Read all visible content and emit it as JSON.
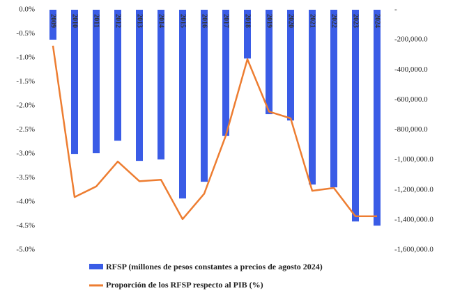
{
  "chart_data": {
    "type": "bar-line",
    "categories": [
      "2009",
      "2010",
      "2011",
      "2012",
      "2013",
      "2014",
      "2015",
      "2016",
      "2017",
      "2018",
      "2019",
      "2020",
      "2021",
      "2022",
      "2023",
      "2024"
    ],
    "series": [
      {
        "name": "RFSP (millones de pesos constantes a precios de agosto 2024)",
        "type": "bar",
        "axis": "y2",
        "color": "#3a5ce6",
        "values": [
          -199500,
          -960600,
          -956000,
          -872400,
          -1007000,
          -997700,
          -1257500,
          -1146000,
          -840000,
          -324800,
          -696000,
          -737800,
          -1164700,
          -1183300,
          -1410700,
          -1438500
        ]
      },
      {
        "name": "Proporción de los RFSP respecto al PIB (%)",
        "type": "line",
        "color": "#ed7d31",
        "values": [
          -0.75,
          -3.9,
          -3.68,
          -3.16,
          -3.57,
          -3.54,
          -4.36,
          -3.83,
          -2.62,
          -1.03,
          -2.12,
          -2.26,
          -3.77,
          -3.71,
          -4.3,
          -4.3
        ]
      }
    ],
    "ylim": [
      -5,
      0
    ],
    "yticks": [
      {
        "value": 0,
        "label": "0.0%"
      },
      {
        "value": -0.5,
        "label": "-0.5%"
      },
      {
        "value": -1,
        "label": "-1.0%"
      },
      {
        "value": -1.5,
        "label": "-1.5%"
      },
      {
        "value": -2,
        "label": "-2.0%"
      },
      {
        "value": -2.5,
        "label": "-2.5%"
      },
      {
        "value": -3,
        "label": "-3.0%"
      },
      {
        "value": -3.5,
        "label": "-3.5%"
      },
      {
        "value": -4,
        "label": "-4.0%"
      },
      {
        "value": -4.5,
        "label": "-4.5%"
      },
      {
        "value": -5,
        "label": "-5.0%"
      }
    ],
    "y2lim": [
      -1600000,
      0
    ],
    "y2ticks": [
      {
        "value": 0,
        "label": "-"
      },
      {
        "value": -200000,
        "label": "-200,000.0"
      },
      {
        "value": -400000,
        "label": "-400,000.0"
      },
      {
        "value": -600000,
        "label": "-600,000.0"
      },
      {
        "value": -800000,
        "label": "-800,000.0"
      },
      {
        "value": -1000000,
        "label": "-1,000,000.0"
      },
      {
        "value": -1200000,
        "label": "-1,200,000.0"
      },
      {
        "value": -1400000,
        "label": "-1,400,000.0"
      },
      {
        "value": -1600000,
        "label": "-1,600,000.0"
      }
    ]
  }
}
